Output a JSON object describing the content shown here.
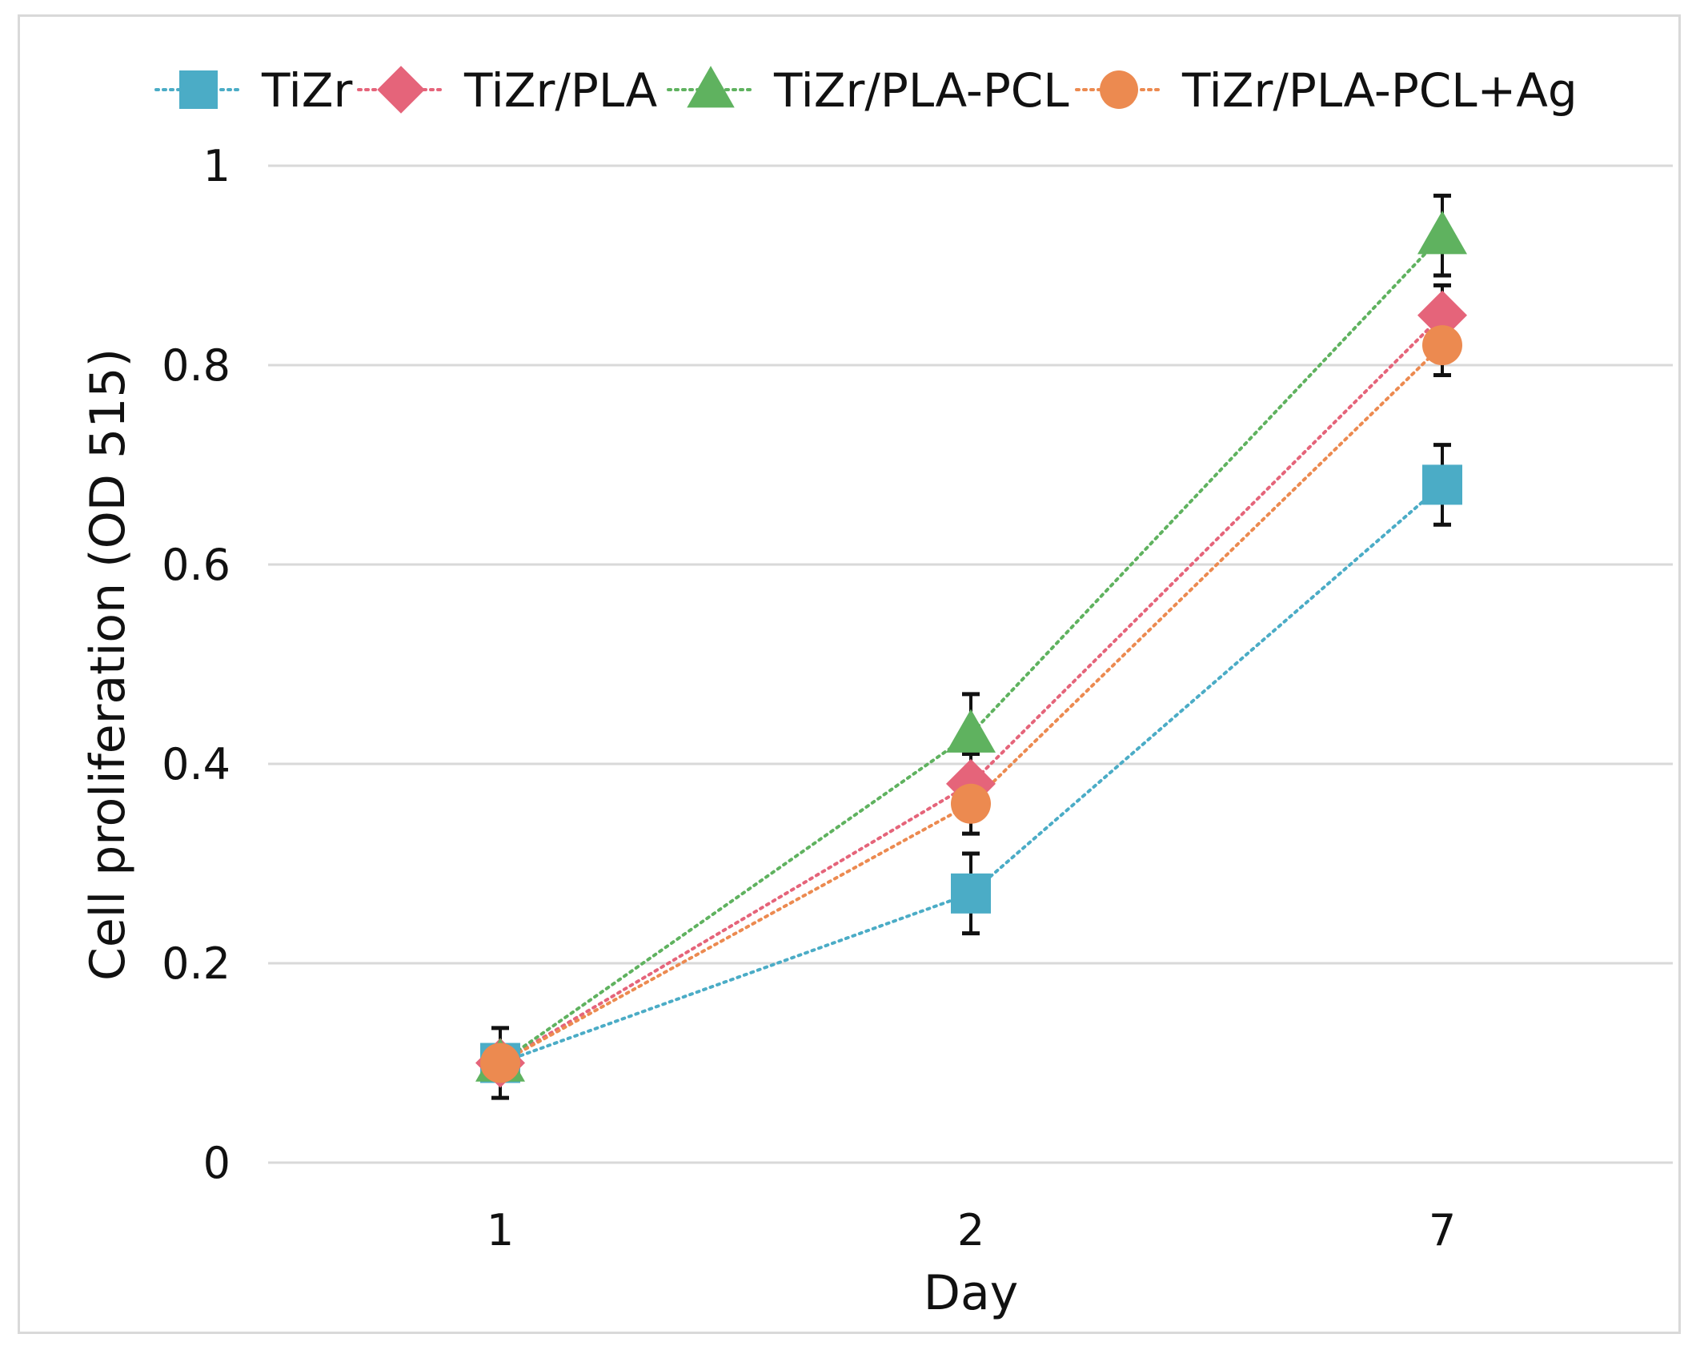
{
  "chart_data": {
    "type": "line",
    "title": "",
    "xlabel": "Day",
    "ylabel": "Cell proliferation (OD  515)",
    "categories": [
      "1",
      "2",
      "7"
    ],
    "ylim": [
      0,
      1
    ],
    "yticks": [
      0,
      0.2,
      0.4,
      0.6,
      0.8,
      1
    ],
    "ytick_labels": [
      "0",
      "0.2",
      "0.4",
      "0.6",
      "0.8",
      "1"
    ],
    "grid": true,
    "legend_position": "top",
    "series": [
      {
        "name": "TiZr",
        "color": "#4bacc6",
        "marker": "square",
        "line_style": "dotted",
        "values": [
          0.1,
          0.27,
          0.68
        ],
        "errors": [
          0.035,
          0.04,
          0.04
        ]
      },
      {
        "name": "TiZr/PLA",
        "color": "#e5647a",
        "marker": "diamond",
        "line_style": "dotted",
        "values": [
          0.1,
          0.38,
          0.85
        ],
        "errors": [
          0.0,
          0.03,
          0.03
        ]
      },
      {
        "name": "TiZr/PLA-PCL",
        "color": "#5fb25f",
        "marker": "triangle",
        "line_style": "dotted",
        "values": [
          0.1,
          0.43,
          0.93
        ],
        "errors": [
          0.0,
          0.04,
          0.04
        ]
      },
      {
        "name": "TiZr/PLA-PCL+Ag",
        "color": "#ec8a50",
        "marker": "circle",
        "line_style": "dotted",
        "values": [
          0.1,
          0.36,
          0.82
        ],
        "errors": [
          0.0,
          0.03,
          0.03
        ]
      }
    ]
  }
}
